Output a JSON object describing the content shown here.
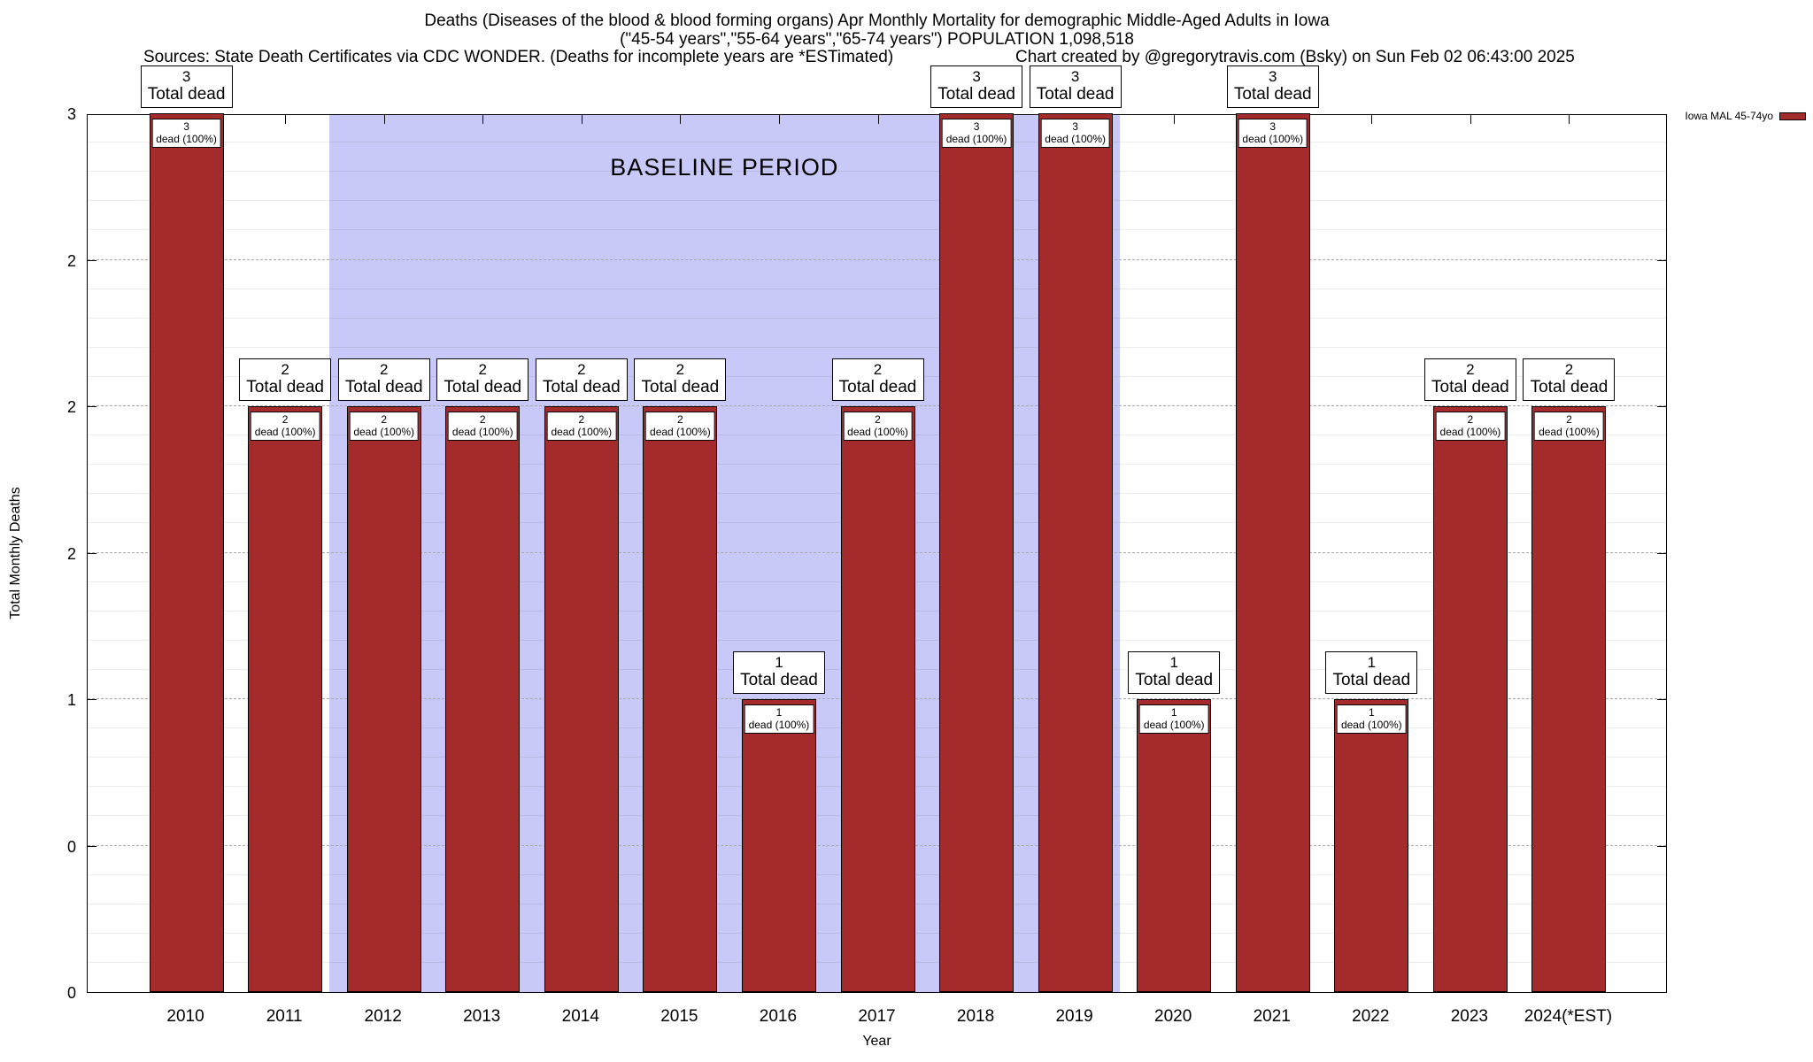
{
  "title": {
    "line1": "Deaths (Diseases of the blood & blood forming organs) Apr Monthly Mortality for demographic Middle-Aged Adults in Iowa",
    "line2": "(\"45-54 years\",\"55-64 years\",\"65-74 years\") POPULATION 1,098,518",
    "sources": "Sources: State Death Certificates via CDC WONDER. (Deaths for incomplete years are *ESTimated)",
    "credit": "Chart created by @gregorytravis.com (Bsky) on Sun Feb 02 06:43:00 2025"
  },
  "legend": {
    "label": "Iowa MAL 45-74yo",
    "color": "#a32b2b"
  },
  "axes": {
    "y_label": "Total Monthly Deaths",
    "x_label": "Year",
    "y_ticks": [
      {
        "v": 0.0,
        "label": "0"
      },
      {
        "v": 0.5,
        "label": "0"
      },
      {
        "v": 1.0,
        "label": "1"
      },
      {
        "v": 1.5,
        "label": "2"
      },
      {
        "v": 2.0,
        "label": "2"
      },
      {
        "v": 2.5,
        "label": "2"
      },
      {
        "v": 3.0,
        "label": "3"
      }
    ]
  },
  "chart_data": {
    "type": "bar",
    "title": "Deaths (Diseases of the blood & blood forming organs) Apr Monthly Mortality for demographic Middle-Aged Adults in Iowa",
    "subtitle": "(\"45-54 years\",\"55-64 years\",\"65-74 years\") POPULATION 1,098,518",
    "categories": [
      "2010",
      "2011",
      "2012",
      "2013",
      "2014",
      "2015",
      "2016",
      "2017",
      "2018",
      "2019",
      "2020",
      "2021",
      "2022",
      "2023",
      "2024(*EST)"
    ],
    "values": [
      3,
      2,
      2,
      2,
      2,
      2,
      1,
      2,
      3,
      3,
      1,
      3,
      1,
      2,
      2
    ],
    "series": [
      {
        "name": "Iowa MAL 45-74yo",
        "values": [
          3,
          2,
          2,
          2,
          2,
          2,
          1,
          2,
          3,
          3,
          1,
          3,
          1,
          2,
          2
        ]
      }
    ],
    "xlabel": "Year",
    "ylabel": "Total Monthly Deaths",
    "ylim": [
      0,
      3
    ],
    "y_tick_interval": 0.5,
    "grid": true,
    "legend_position": "top-right-outside",
    "bar_color": "#a32b2b",
    "bar_label_title_suffix": "Total dead",
    "bar_label_inner_suffix": "dead (100%)",
    "bar_label_inner_percent": "100%",
    "baseline_band": {
      "label": "BASELINE PERIOD",
      "covers_years": "2012-2019",
      "start_frac": 0.153,
      "end_frac": 0.653,
      "color": "#c9c9f9"
    }
  }
}
